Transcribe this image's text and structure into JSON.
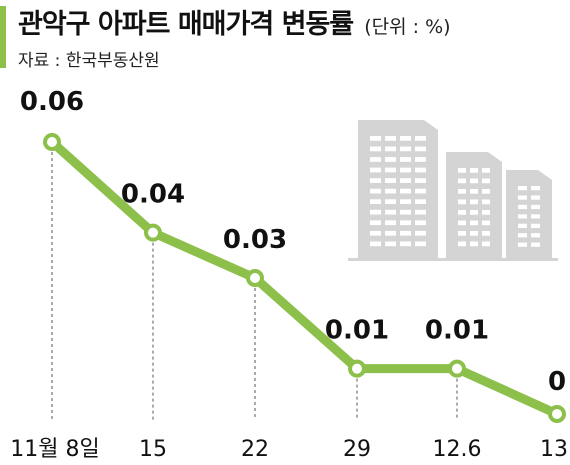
{
  "header": {
    "title": "관악구 아파트 매매가격 변동률",
    "unit": "(단위 : %)",
    "source": "자료 : 한국부동산원"
  },
  "colors": {
    "accent": "#8cc04a",
    "building": "#d4d4d4",
    "window": "#ffffff",
    "text": "#111111"
  },
  "icons": [
    "apartment-buildings-icon"
  ],
  "chart_data": {
    "type": "line",
    "categories": [
      "11월 8일",
      "15",
      "22",
      "29",
      "12.6",
      "13"
    ],
    "values": [
      0.06,
      0.04,
      0.03,
      0.01,
      0.01,
      0
    ],
    "value_labels": [
      "0.06",
      "0.04",
      "0.03",
      "0.01",
      "0.01",
      "0"
    ],
    "title": "관악구 아파트 매매가격 변동률",
    "unit": "(단위 : %)",
    "xlabel": "",
    "ylabel": "",
    "grid": false,
    "legend": "none"
  }
}
